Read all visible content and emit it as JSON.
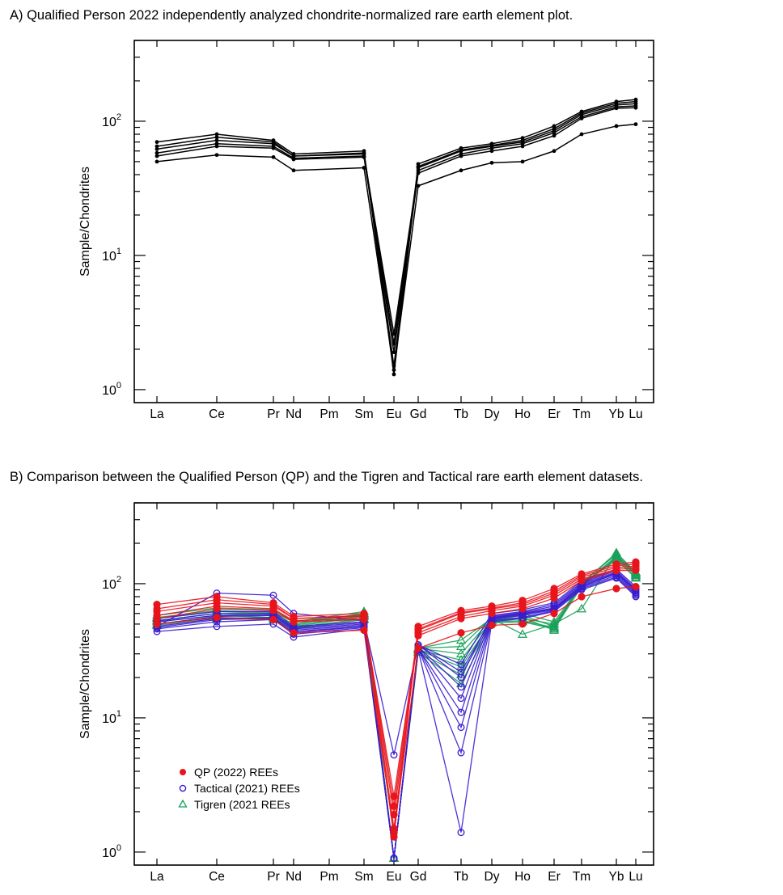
{
  "captions": {
    "a": "A) Qualified Person 2022 independently  analyzed  chondrite-normalized  rare earth element  plot.",
    "b": "B) Comparison between the Qualified Person (QP) and the Tigren and Tactical rare earth element datasets."
  },
  "colors": {
    "qp": "#e8141c",
    "tactical": "#3a1ccf",
    "tigren": "#1aa05a",
    "black": "#000000"
  },
  "chart_data": [
    {
      "type": "line",
      "title": "",
      "ylabel": "Sample/Chondrites",
      "yscale": "log",
      "ylim": [
        0.8,
        400
      ],
      "yticks": [
        {
          "base": "10",
          "exp": "0"
        },
        {
          "base": "10",
          "exp": "1"
        },
        {
          "base": "10",
          "exp": "2"
        }
      ],
      "categories": [
        "La",
        "Ce",
        "Pr",
        "Nd",
        "Pm",
        "Sm",
        "Eu",
        "Gd",
        "Tb",
        "Dy",
        "Ho",
        "Er",
        "Tm",
        "Yb",
        "Lu"
      ],
      "series": [
        {
          "group": "qp",
          "values": [
            70,
            80,
            72,
            57,
            null,
            60,
            1.3,
            48,
            63,
            68,
            75,
            92,
            118,
            140,
            145
          ]
        },
        {
          "group": "qp",
          "values": [
            65,
            76,
            70,
            55,
            null,
            58,
            1.5,
            46,
            61,
            66,
            72,
            88,
            115,
            136,
            140
          ]
        },
        {
          "group": "qp",
          "values": [
            62,
            72,
            68,
            55,
            null,
            57,
            2.2,
            45,
            60,
            65,
            70,
            85,
            112,
            132,
            135
          ]
        },
        {
          "group": "qp",
          "values": [
            58,
            68,
            65,
            53,
            null,
            55,
            2.6,
            43,
            57,
            63,
            68,
            82,
            108,
            128,
            130
          ]
        },
        {
          "group": "qp",
          "values": [
            55,
            65,
            63,
            52,
            null,
            54,
            1.9,
            41,
            55,
            60,
            65,
            78,
            105,
            125,
            126
          ]
        },
        {
          "group": "qp",
          "values": [
            50,
            56,
            54,
            43,
            null,
            45,
            1.4,
            33,
            43,
            49,
            50,
            60,
            80,
            92,
            95
          ]
        }
      ]
    },
    {
      "type": "line",
      "title": "",
      "ylabel": "Sample/Chondrites",
      "yscale": "log",
      "ylim": [
        0.8,
        400
      ],
      "yticks": [
        {
          "base": "10",
          "exp": "0"
        },
        {
          "base": "10",
          "exp": "1"
        },
        {
          "base": "10",
          "exp": "2"
        }
      ],
      "categories": [
        "La",
        "Ce",
        "Pr",
        "Nd",
        "Pm",
        "Sm",
        "Eu",
        "Gd",
        "Tb",
        "Dy",
        "Ho",
        "Er",
        "Tm",
        "Yb",
        "Lu"
      ],
      "legend": {
        "position": "bottom-left",
        "entries": [
          {
            "label": "QP (2022) REEs",
            "group": "qp",
            "marker": "filled-circle"
          },
          {
            "label": "Tactical (2021) REEs",
            "group": "tactical",
            "marker": "open-circle"
          },
          {
            "label": "Tigren (2021 REEs",
            "group": "tigren",
            "marker": "open-triangle"
          }
        ]
      },
      "series": [
        {
          "group": "tigren",
          "values": [
            58,
            66,
            64,
            52,
            null,
            62,
            0.9,
            33,
            34,
            56,
            60,
            52,
            98,
            160,
            118
          ]
        },
        {
          "group": "tigren",
          "values": [
            55,
            62,
            60,
            50,
            null,
            60,
            0.9,
            33,
            30,
            55,
            58,
            48,
            100,
            170,
            122
          ]
        },
        {
          "group": "tigren",
          "values": [
            53,
            60,
            58,
            49,
            null,
            58,
            0.9,
            32,
            27,
            54,
            56,
            45,
            102,
            165,
            115
          ]
        },
        {
          "group": "tigren",
          "values": [
            52,
            58,
            56,
            48,
            null,
            57,
            0.9,
            32,
            24,
            53,
            55,
            50,
            96,
            155,
            112
          ]
        },
        {
          "group": "tigren",
          "values": [
            50,
            56,
            55,
            47,
            null,
            55,
            0.9,
            31,
            21,
            52,
            53,
            47,
            100,
            150,
            110
          ]
        },
        {
          "group": "tigren",
          "values": [
            49,
            55,
            54,
            46,
            null,
            54,
            0.9,
            31,
            18,
            51,
            52,
            46,
            95,
            158,
            116
          ]
        },
        {
          "group": "tigren",
          "values": [
            56,
            63,
            61,
            52,
            null,
            59,
            0.9,
            33,
            38,
            55,
            42,
            50,
            65,
            165,
            120
          ]
        },
        {
          "group": "tactical",
          "values": [
            48,
            85,
            82,
            60,
            null,
            53,
            5.3,
            35,
            22,
            55,
            60,
            65,
            95,
            120,
            90
          ]
        },
        {
          "group": "tactical",
          "values": [
            44,
            48,
            50,
            40,
            null,
            46,
            0.9,
            32,
            1.4,
            52,
            55,
            62,
            90,
            110,
            80
          ]
        },
        {
          "group": "tactical",
          "values": [
            46,
            52,
            54,
            42,
            null,
            47,
            0.9,
            33,
            5.5,
            53,
            56,
            63,
            92,
            112,
            82
          ]
        },
        {
          "group": "tactical",
          "values": [
            47,
            54,
            55,
            43,
            null,
            48,
            0.9,
            33,
            8.5,
            54,
            58,
            64,
            94,
            115,
            84
          ]
        },
        {
          "group": "tactical",
          "values": [
            48,
            55,
            56,
            44,
            null,
            48,
            0.9,
            33,
            11,
            55,
            59,
            65,
            96,
            118,
            86
          ]
        },
        {
          "group": "tactical",
          "values": [
            50,
            57,
            58,
            45,
            null,
            49,
            0.9,
            34,
            14,
            56,
            60,
            66,
            98,
            120,
            88
          ]
        },
        {
          "group": "tactical",
          "values": [
            52,
            58,
            59,
            46,
            null,
            50,
            0.9,
            34,
            17,
            57,
            61,
            68,
            100,
            122,
            90
          ]
        },
        {
          "group": "tactical",
          "values": [
            53,
            60,
            60,
            47,
            null,
            51,
            0.9,
            35,
            20,
            58,
            62,
            70,
            102,
            125,
            92
          ]
        },
        {
          "group": "tactical",
          "values": [
            55,
            62,
            62,
            48,
            null,
            52,
            0.9,
            35,
            25,
            60,
            64,
            72,
            105,
            128,
            95
          ]
        },
        {
          "group": "qp",
          "values": [
            70,
            80,
            72,
            57,
            null,
            60,
            1.3,
            48,
            63,
            68,
            75,
            92,
            118,
            140,
            145
          ]
        },
        {
          "group": "qp",
          "values": [
            65,
            76,
            70,
            55,
            null,
            58,
            1.5,
            46,
            61,
            66,
            72,
            88,
            115,
            136,
            140
          ]
        },
        {
          "group": "qp",
          "values": [
            62,
            72,
            68,
            55,
            null,
            57,
            2.2,
            45,
            60,
            65,
            70,
            85,
            112,
            132,
            135
          ]
        },
        {
          "group": "qp",
          "values": [
            58,
            68,
            65,
            53,
            null,
            55,
            2.6,
            43,
            57,
            63,
            68,
            82,
            108,
            128,
            130
          ]
        },
        {
          "group": "qp",
          "values": [
            55,
            65,
            63,
            52,
            null,
            54,
            1.9,
            41,
            55,
            60,
            65,
            78,
            105,
            125,
            126
          ]
        },
        {
          "group": "qp",
          "values": [
            50,
            56,
            54,
            43,
            null,
            45,
            1.4,
            33,
            43,
            49,
            50,
            60,
            80,
            92,
            95
          ]
        }
      ]
    }
  ]
}
